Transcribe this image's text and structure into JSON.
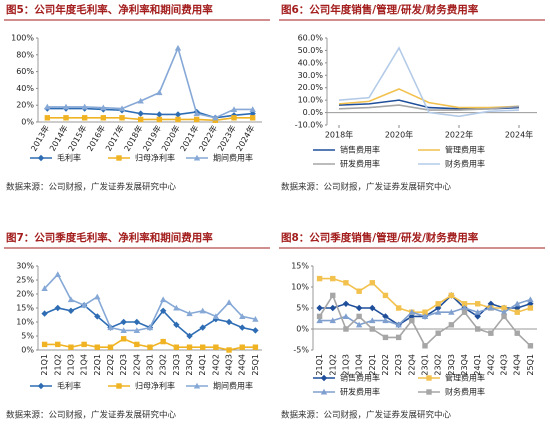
{
  "chart_data": [
    {
      "type": "line",
      "title": "图5：公司年度毛利率、净利率和期间费用率",
      "note": "数据来源：公司财报，广发证券发展研究中心",
      "categories": [
        "2013年",
        "2014年",
        "2015年",
        "2016年",
        "2017年",
        "2018年",
        "2019年",
        "2020年",
        "2021年",
        "2022年",
        "2023年",
        "2024年"
      ],
      "series": [
        {
          "name": "毛利率",
          "color": "#2e6db4",
          "marker": "diamond",
          "values": [
            16,
            16,
            16,
            15,
            14,
            10,
            9,
            9,
            12,
            5,
            8,
            10
          ]
        },
        {
          "name": "归母净利率",
          "color": "#f0b323",
          "marker": "square",
          "values": [
            5,
            5,
            5,
            5,
            5,
            3,
            3,
            3,
            3,
            2,
            5,
            5
          ]
        },
        {
          "name": "期间费用率",
          "color": "#86a8d6",
          "marker": "triangle",
          "values": [
            18,
            18,
            18,
            17,
            16,
            25,
            35,
            88,
            10,
            5,
            15,
            15
          ]
        }
      ],
      "ylim": [
        0,
        100
      ],
      "yticks": [
        {
          "value": 0,
          "label": "0%"
        },
        {
          "value": 20,
          "label": "20%"
        },
        {
          "value": 40,
          "label": "40%"
        },
        {
          "value": 60,
          "label": "60%"
        },
        {
          "value": 80,
          "label": "80%"
        },
        {
          "value": 100,
          "label": "100%"
        }
      ],
      "x_label_rotation": -60,
      "legend_columns": 3,
      "grid": false
    },
    {
      "type": "line",
      "title": "图6：公司年度销售/管理/研发/财务费用率",
      "note": "数据来源：公司财报，广发证券发展研究中心",
      "x": [
        2018,
        2019,
        2020,
        2021,
        2022,
        2023,
        2024
      ],
      "xlim": [
        2017.6,
        2024.6
      ],
      "xticks": [
        {
          "value": 2018,
          "label": "2018年"
        },
        {
          "value": 2020,
          "label": "2020年"
        },
        {
          "value": 2022,
          "label": "2022年"
        },
        {
          "value": 2024,
          "label": "2024年"
        }
      ],
      "series": [
        {
          "name": "销售费用率",
          "color": "#1f4e9a",
          "marker": "none",
          "values": [
            6,
            7,
            10,
            4,
            3,
            3,
            4
          ]
        },
        {
          "name": "管理费用率",
          "color": "#f2c14e",
          "marker": "none",
          "values": [
            7,
            9,
            19,
            8,
            4,
            4,
            5
          ]
        },
        {
          "name": "研发费用率",
          "color": "#a6a6a6",
          "marker": "none",
          "values": [
            3,
            4,
            6,
            2,
            2,
            3,
            5
          ]
        },
        {
          "name": "财务费用率",
          "color": "#b4cbe8",
          "marker": "none",
          "values": [
            10,
            12,
            52,
            0,
            -3,
            1,
            2
          ]
        }
      ],
      "ylim": [
        -10,
        60
      ],
      "yticks": [
        {
          "value": -10,
          "label": "-10.0%"
        },
        {
          "value": 0,
          "label": "0.0%"
        },
        {
          "value": 10,
          "label": "10.0%"
        },
        {
          "value": 20,
          "label": "20.0%"
        },
        {
          "value": 30,
          "label": "30.0%"
        },
        {
          "value": 40,
          "label": "40.0%"
        },
        {
          "value": 50,
          "label": "50.0%"
        },
        {
          "value": 60,
          "label": "60.0%"
        }
      ],
      "x_label_rotation": 0,
      "legend_columns": 2,
      "grid": false
    },
    {
      "type": "line",
      "title": "图7：公司季度毛利率、净利率和期间费用率",
      "note": "数据来源：公司财报，广发证券发展研究中心",
      "categories": [
        "21Q1",
        "21Q2",
        "21Q3",
        "21Q4",
        "22Q1",
        "22Q2",
        "22Q3",
        "22Q4",
        "23Q1",
        "23Q2",
        "23Q3",
        "23Q4",
        "24Q1",
        "24Q2",
        "24Q3",
        "24Q4",
        "25Q1"
      ],
      "series": [
        {
          "name": "毛利率",
          "color": "#2e6db4",
          "marker": "diamond",
          "values": [
            13,
            15,
            14,
            16,
            12,
            8,
            10,
            10,
            8,
            14,
            9,
            5,
            8,
            11,
            10,
            8,
            7
          ]
        },
        {
          "name": "归母净利率",
          "color": "#f0b323",
          "marker": "square",
          "values": [
            2,
            2,
            1,
            2,
            1,
            1,
            4,
            2,
            1,
            3,
            1,
            1,
            1,
            1,
            0,
            1,
            1
          ]
        },
        {
          "name": "期间费用率",
          "color": "#86a8d6",
          "marker": "triangle",
          "values": [
            22,
            27,
            18,
            16,
            19,
            8,
            7,
            7,
            8,
            18,
            15,
            13,
            14,
            12,
            17,
            12,
            11
          ]
        }
      ],
      "ylim": [
        0,
        30
      ],
      "yticks": [
        {
          "value": 0,
          "label": "0%"
        },
        {
          "value": 5,
          "label": "5%"
        },
        {
          "value": 10,
          "label": "10%"
        },
        {
          "value": 15,
          "label": "15%"
        },
        {
          "value": 20,
          "label": "20%"
        },
        {
          "value": 25,
          "label": "25%"
        },
        {
          "value": 30,
          "label": "30%"
        }
      ],
      "x_label_rotation": -90,
      "legend_columns": 3,
      "grid": false
    },
    {
      "type": "line",
      "title": "图8：公司季度销售/管理/研发/财务费用率",
      "note": "数据来源：公司财报，广发证券发展研究中心",
      "categories": [
        "21Q1",
        "21Q2",
        "21Q3",
        "21Q4",
        "22Q1",
        "22Q2",
        "22Q3",
        "22Q4",
        "23Q1",
        "23Q2",
        "23Q3",
        "23Q4",
        "24Q1",
        "24Q2",
        "24Q3",
        "24Q4",
        "25Q1"
      ],
      "series": [
        {
          "name": "销售费用率",
          "color": "#1f4e9a",
          "marker": "diamond",
          "values": [
            5,
            5,
            6,
            5,
            5,
            3,
            1,
            3,
            3,
            5,
            8,
            5,
            3,
            6,
            5,
            5,
            6
          ]
        },
        {
          "name": "管理费用率",
          "color": "#f2c14e",
          "marker": "square",
          "values": [
            12,
            12,
            11,
            9,
            11,
            8,
            5,
            4,
            4,
            6,
            8,
            6,
            6,
            5,
            5,
            4,
            5
          ]
        },
        {
          "name": "研发费用率",
          "color": "#7f9fcf",
          "marker": "triangle",
          "values": [
            2,
            2,
            3,
            1,
            2,
            2,
            1,
            4,
            3,
            4,
            4,
            5,
            4,
            5,
            4,
            6,
            7
          ]
        },
        {
          "name": "财务费用率",
          "color": "#a6a6a6",
          "marker": "square",
          "values": [
            3,
            8,
            0,
            3,
            0,
            -2,
            -2,
            2,
            -4,
            -1,
            1,
            4,
            0,
            -1,
            3,
            -1,
            -4
          ]
        }
      ],
      "ylim": [
        -5,
        15
      ],
      "yticks": [
        {
          "value": -5,
          "label": "-5%"
        },
        {
          "value": 0,
          "label": "0%"
        },
        {
          "value": 5,
          "label": "5%"
        },
        {
          "value": 10,
          "label": "10%"
        },
        {
          "value": 15,
          "label": "15%"
        }
      ],
      "x_label_rotation": -90,
      "legend_columns": 2,
      "grid": false
    }
  ]
}
